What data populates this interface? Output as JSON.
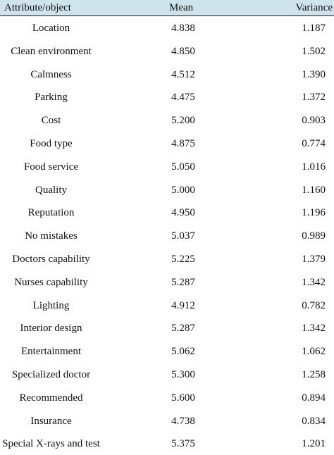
{
  "table": {
    "headers": [
      "Attribute/object",
      "Mean",
      "Variance"
    ],
    "rows": [
      {
        "attribute": "Location",
        "mean": "4.838",
        "variance": "1.187"
      },
      {
        "attribute": "Clean environment",
        "mean": "4.850",
        "variance": "1.502"
      },
      {
        "attribute": "Calmness",
        "mean": "4.512",
        "variance": "1.390"
      },
      {
        "attribute": "Parking",
        "mean": "4.475",
        "variance": "1.372"
      },
      {
        "attribute": "Cost",
        "mean": "5.200",
        "variance": "0.903"
      },
      {
        "attribute": "Food type",
        "mean": "4.875",
        "variance": "0.774"
      },
      {
        "attribute": "Food service",
        "mean": "5.050",
        "variance": "1.016"
      },
      {
        "attribute": "Quality",
        "mean": "5.000",
        "variance": "1.160"
      },
      {
        "attribute": "Reputation",
        "mean": "4.950",
        "variance": "1.196"
      },
      {
        "attribute": "No mistakes",
        "mean": "5.037",
        "variance": "0.989"
      },
      {
        "attribute": "Doctors capability",
        "mean": "5.225",
        "variance": "1.379"
      },
      {
        "attribute": "Nurses capability",
        "mean": "5.287",
        "variance": "1.342"
      },
      {
        "attribute": "Lighting",
        "mean": "4.912",
        "variance": "0.782"
      },
      {
        "attribute": "Interior design",
        "mean": "5.287",
        "variance": "1.342"
      },
      {
        "attribute": "Entertainment",
        "mean": "5.062",
        "variance": "1.062"
      },
      {
        "attribute": "Specialized doctor",
        "mean": "5.300",
        "variance": "1.258"
      },
      {
        "attribute": "Recommended",
        "mean": "5.600",
        "variance": "0.894"
      },
      {
        "attribute": "Insurance",
        "mean": "4.738",
        "variance": "0.834"
      },
      {
        "attribute": "Special X-rays and test",
        "mean": "5.375",
        "variance": "1.201"
      }
    ]
  }
}
